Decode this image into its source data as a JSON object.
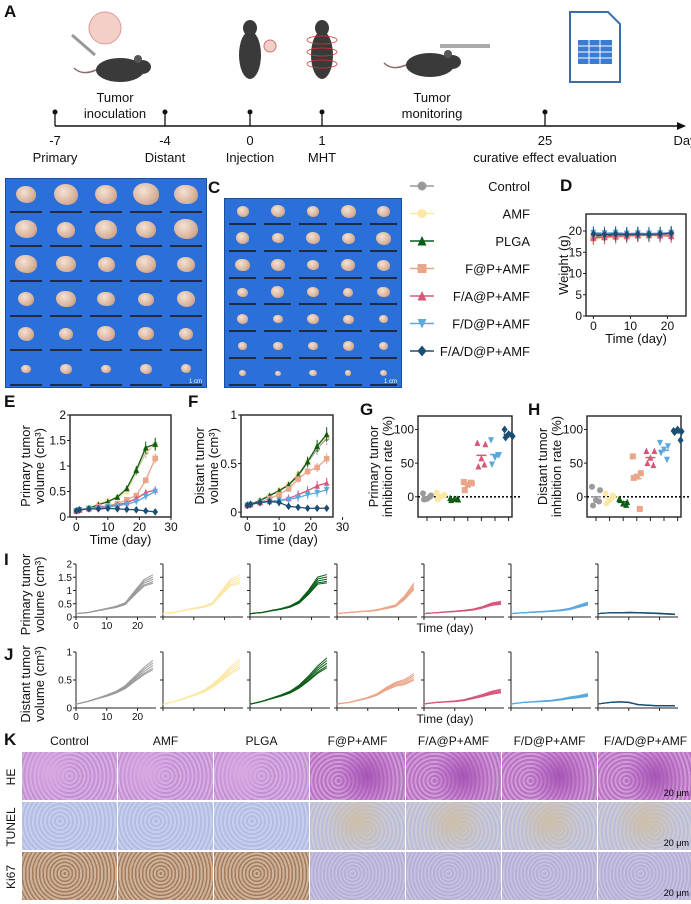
{
  "panel_labels": {
    "A": "A",
    "B": "B",
    "C": "C",
    "D": "D",
    "E": "E",
    "F": "F",
    "G": "G",
    "H": "H",
    "I": "I",
    "J": "J",
    "K": "K"
  },
  "timeline": {
    "unit": "Day",
    "events": [
      {
        "day": "-7",
        "label": "Primary"
      },
      {
        "day": "-4",
        "label": "Distant"
      },
      {
        "day": "0",
        "label": "Injection"
      },
      {
        "day": "1",
        "label": "MHT"
      },
      {
        "day": "25",
        "label": "curative effect evaluation"
      }
    ],
    "phase_labels": [
      [
        "Tumor",
        "inoculation"
      ],
      [
        "Tumor",
        "monitoring"
      ]
    ],
    "icons": [
      "syringe-tumor-mouse-icon",
      "injected-mouse-icon",
      "magnetic-field-mouse-icon",
      "caliper-mouse-icon",
      "spreadsheet-icon"
    ]
  },
  "photos": {
    "scale_bar": "1 cm"
  },
  "groups": [
    {
      "name": "Control",
      "color": "#9a9a9a",
      "marker": "circle"
    },
    {
      "name": "AMF",
      "color": "#fce7a3",
      "marker": "hexagon"
    },
    {
      "name": "PLGA",
      "color": "#0b5d17",
      "marker": "triangle"
    },
    {
      "name": "F@P+AMF",
      "color": "#e9a689",
      "marker": "square"
    },
    {
      "name": "F/A@P+AMF",
      "color": "#d95679",
      "marker": "triangle"
    },
    {
      "name": "F/D@P+AMF",
      "color": "#5aa8e0",
      "marker": "triangle-down"
    },
    {
      "name": "F/A/D@P+AMF",
      "color": "#1c4e73",
      "marker": "diamond"
    }
  ],
  "chart_data": [
    {
      "id": "D",
      "type": "line",
      "ylabel": "Weight (g)",
      "xlabel": "Time (day)",
      "xlim": [
        -2,
        25
      ],
      "ylim": [
        0,
        24
      ],
      "xticks": [
        0,
        10,
        20
      ],
      "yticks": [
        0,
        5,
        10,
        15,
        20
      ],
      "x": [
        0,
        3,
        6,
        9,
        12,
        15,
        18,
        21
      ],
      "series": [
        {
          "name": "Control",
          "values": [
            18.6,
            18.8,
            19,
            19.1,
            19.1,
            19.2,
            19.2,
            19.3
          ]
        },
        {
          "name": "AMF",
          "values": [
            18.0,
            18.3,
            18.5,
            18.7,
            18.8,
            18.8,
            18.9,
            19.0
          ]
        },
        {
          "name": "PLGA",
          "values": [
            18.9,
            19.0,
            19.1,
            19.2,
            19.3,
            19.3,
            19.3,
            19.4
          ]
        },
        {
          "name": "F@P+AMF",
          "values": [
            18.3,
            18.5,
            18.6,
            18.7,
            18.9,
            19.0,
            19.0,
            19.1
          ]
        },
        {
          "name": "F/A@P+AMF",
          "values": [
            18.4,
            18.6,
            18.8,
            18.9,
            19.0,
            19.0,
            18.9,
            18.8
          ]
        },
        {
          "name": "F/D@P+AMF",
          "values": [
            19.6,
            19.5,
            19.6,
            19.4,
            19.5,
            19.4,
            19.5,
            19.6
          ]
        },
        {
          "name": "F/A/D@P+AMF",
          "values": [
            19.3,
            19.2,
            19.3,
            19.2,
            19.3,
            19.2,
            19.3,
            19.5
          ]
        }
      ]
    },
    {
      "id": "E",
      "type": "line",
      "ylabel": [
        "Primary tumor",
        "volume (cm³)"
      ],
      "xlabel": "Time (day)",
      "xlim": [
        -2,
        30
      ],
      "ylim": [
        0,
        2
      ],
      "xticks": [
        0,
        10,
        20,
        30
      ],
      "yticks": [
        0,
        0.5,
        1,
        1.5,
        2
      ],
      "ytick_labels": [
        "0",
        "0.5",
        "1",
        "1.5",
        "2"
      ],
      "x": [
        0,
        1,
        4,
        7,
        10,
        13,
        16,
        19,
        22,
        25
      ],
      "series": [
        {
          "name": "Control",
          "values": [
            0.12,
            0.14,
            0.17,
            0.24,
            0.31,
            0.38,
            0.5,
            0.89,
            1.27,
            1.42
          ]
        },
        {
          "name": "AMF",
          "values": [
            0.12,
            0.15,
            0.18,
            0.26,
            0.32,
            0.38,
            0.5,
            0.9,
            1.3,
            1.4
          ]
        },
        {
          "name": "PLGA",
          "values": [
            0.12,
            0.14,
            0.17,
            0.24,
            0.3,
            0.39,
            0.56,
            0.92,
            1.36,
            1.43
          ]
        },
        {
          "name": "F@P+AMF",
          "values": [
            0.12,
            0.14,
            0.17,
            0.2,
            0.22,
            0.26,
            0.34,
            0.42,
            0.72,
            1.15
          ]
        },
        {
          "name": "F/A@P+AMF",
          "values": [
            0.12,
            0.14,
            0.16,
            0.19,
            0.21,
            0.24,
            0.28,
            0.36,
            0.48,
            0.53
          ]
        },
        {
          "name": "F/D@P+AMF",
          "values": [
            0.12,
            0.14,
            0.16,
            0.18,
            0.2,
            0.22,
            0.25,
            0.3,
            0.4,
            0.5
          ]
        },
        {
          "name": "F/A/D@P+AMF",
          "values": [
            0.12,
            0.14,
            0.16,
            0.16,
            0.17,
            0.16,
            0.15,
            0.14,
            0.12,
            0.1
          ]
        }
      ]
    },
    {
      "id": "F",
      "type": "line",
      "ylabel": [
        "Distant tumor",
        "volume (cm³)"
      ],
      "xlabel": "Time (day)",
      "xlim": [
        -2,
        27
      ],
      "ylim": [
        -0.05,
        1.0
      ],
      "xticks": [
        0,
        10,
        20,
        30
      ],
      "yticks": [
        0,
        0.5,
        1
      ],
      "ytick_labels": [
        "0",
        "0.5",
        "1"
      ],
      "x": [
        0,
        1,
        4,
        7,
        10,
        13,
        16,
        19,
        22,
        25
      ],
      "series": [
        {
          "name": "Control",
          "values": [
            0.07,
            0.08,
            0.12,
            0.17,
            0.22,
            0.28,
            0.37,
            0.51,
            0.65,
            0.76
          ]
        },
        {
          "name": "AMF",
          "values": [
            0.07,
            0.08,
            0.12,
            0.17,
            0.23,
            0.29,
            0.39,
            0.52,
            0.67,
            0.78
          ]
        },
        {
          "name": "PLGA",
          "values": [
            0.07,
            0.08,
            0.12,
            0.17,
            0.22,
            0.28,
            0.38,
            0.52,
            0.68,
            0.8
          ]
        },
        {
          "name": "F@P+AMF",
          "values": [
            0.07,
            0.08,
            0.1,
            0.14,
            0.18,
            0.24,
            0.34,
            0.42,
            0.46,
            0.55
          ]
        },
        {
          "name": "F/A@P+AMF",
          "values": [
            0.07,
            0.08,
            0.1,
            0.11,
            0.12,
            0.14,
            0.18,
            0.22,
            0.27,
            0.3
          ]
        },
        {
          "name": "F/D@P+AMF",
          "values": [
            0.07,
            0.08,
            0.1,
            0.11,
            0.12,
            0.13,
            0.15,
            0.18,
            0.2,
            0.23
          ]
        },
        {
          "name": "F/A/D@P+AMF",
          "values": [
            0.07,
            0.08,
            0.1,
            0.11,
            0.1,
            0.06,
            0.05,
            0.04,
            0.04,
            0.04
          ]
        }
      ]
    },
    {
      "id": "G",
      "type": "scatter",
      "ylabel": [
        "Primary tumor",
        "inhibition rate (%)"
      ],
      "ylim": [
        -30,
        120
      ],
      "yticks": [
        0,
        50,
        100
      ],
      "reference_line": 0,
      "series": [
        {
          "name": "Control",
          "values": [
            5,
            2,
            -3,
            -4,
            0
          ]
        },
        {
          "name": "AMF",
          "values": [
            6,
            3,
            0,
            -4,
            2
          ]
        },
        {
          "name": "PLGA",
          "values": [
            -2,
            -4,
            -3,
            -5,
            -3
          ]
        },
        {
          "name": "F@P+AMF",
          "values": [
            22,
            20,
            18,
            10,
            21
          ]
        },
        {
          "name": "F/A@P+AMF",
          "values": [
            80,
            78,
            57,
            45,
            48
          ]
        },
        {
          "name": "F/D@P+AMF",
          "values": [
            84,
            62,
            58,
            48,
            62
          ]
        },
        {
          "name": "F/A/D@P+AMF",
          "values": [
            100,
            90,
            93,
            88,
            92
          ]
        }
      ]
    },
    {
      "id": "H",
      "type": "scatter",
      "ylabel": [
        "Distant tumor",
        "inhibition rate (%)"
      ],
      "ylim": [
        -30,
        120
      ],
      "yticks": [
        0,
        50,
        100
      ],
      "reference_line": 0,
      "series": [
        {
          "name": "Control",
          "values": [
            15,
            10,
            -5,
            -13,
            -7
          ]
        },
        {
          "name": "AMF",
          "values": [
            5,
            0,
            -5,
            -10,
            2
          ]
        },
        {
          "name": "PLGA",
          "values": [
            -3,
            -8,
            -10,
            -5,
            -12
          ]
        },
        {
          "name": "F@P+AMF",
          "values": [
            60,
            35,
            30,
            28,
            -18
          ]
        },
        {
          "name": "F/A@P+AMF",
          "values": [
            68,
            68,
            58,
            50,
            47
          ]
        },
        {
          "name": "F/D@P+AMF",
          "values": [
            80,
            75,
            70,
            65,
            55
          ]
        },
        {
          "name": "F/A/D@P+AMF",
          "values": [
            98,
            97,
            100,
            96,
            84
          ]
        }
      ]
    },
    {
      "id": "I",
      "type": "line",
      "ylabel": [
        "Primary tumor",
        "volume (cm³)"
      ],
      "xlabel": "Time (day)",
      "xlim": [
        0,
        26
      ],
      "ylim": [
        0,
        2
      ],
      "xticks": [
        0,
        10,
        20
      ],
      "yticks": [
        0,
        0.5,
        1,
        1.5,
        2
      ],
      "ytick_labels": [
        "0",
        "0.5",
        "1",
        "1.5",
        "2"
      ],
      "source": "E",
      "curves_per_group": 5
    },
    {
      "id": "J",
      "type": "line",
      "ylabel": [
        "Distant tumor",
        "volume (cm³)"
      ],
      "xlabel": "Time (day)",
      "xlim": [
        0,
        26
      ],
      "ylim": [
        0,
        1
      ],
      "xticks": [
        0,
        10,
        20
      ],
      "yticks": [
        0,
        0.5,
        1
      ],
      "ytick_labels": [
        "0",
        "0.5",
        "1"
      ],
      "source": "F",
      "curves_per_group": 5
    }
  ],
  "histology": {
    "columns": [
      "Control",
      "AMF",
      "PLGA",
      "F@P+AMF",
      "F/A@P+AMF",
      "F/D@P+AMF",
      "F/A/D@P+AMF"
    ],
    "rows": [
      "HE",
      "TUNEL",
      "Ki67"
    ],
    "scale_bar": "20 μm"
  }
}
